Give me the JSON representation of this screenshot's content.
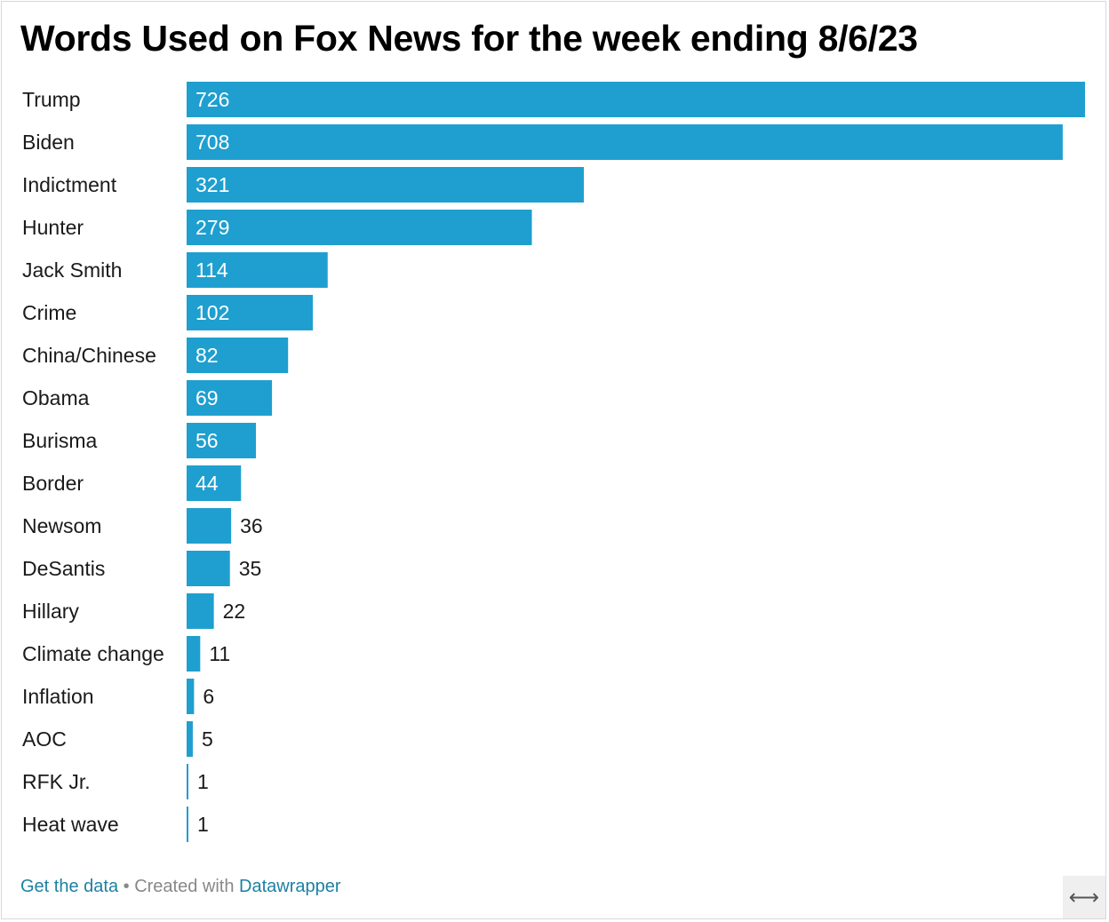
{
  "chart_data": {
    "type": "bar",
    "orientation": "horizontal",
    "title": "Words Used on Fox News for the week ending 8/6/23",
    "categories": [
      "Trump",
      "Biden",
      "Indictment",
      "Hunter",
      "Jack Smith",
      "Crime",
      "China/Chinese",
      "Obama",
      "Burisma",
      "Border",
      "Newsom",
      "DeSantis",
      "Hillary",
      "Climate change",
      "Inflation",
      "AOC",
      "RFK Jr.",
      "Heat wave"
    ],
    "values": [
      726,
      708,
      321,
      279,
      114,
      102,
      82,
      69,
      56,
      44,
      36,
      35,
      22,
      11,
      6,
      5,
      1,
      1
    ],
    "xlim": [
      0,
      726
    ],
    "grid": false,
    "legend": "none",
    "bar_color": "#1f9fcf"
  },
  "footer": {
    "get_data": "Get the data",
    "separator": " • Created with ",
    "datawrapper": "Datawrapper"
  },
  "icons": {
    "expand": "left-right-arrow-icon"
  }
}
